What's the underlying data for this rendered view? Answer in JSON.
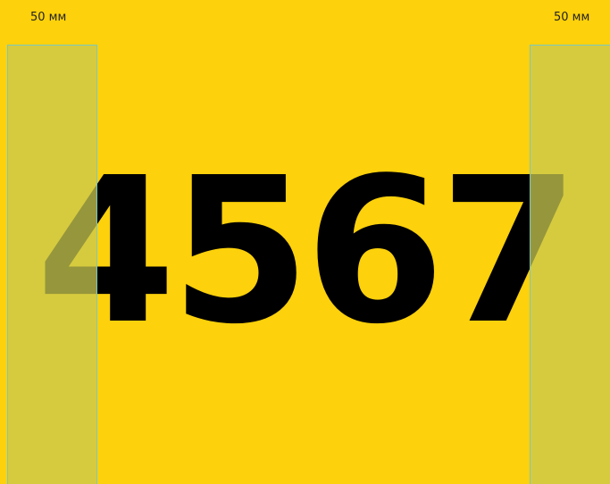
{
  "left_label": "50 мм",
  "right_label": "50 мм",
  "number": "4567"
}
